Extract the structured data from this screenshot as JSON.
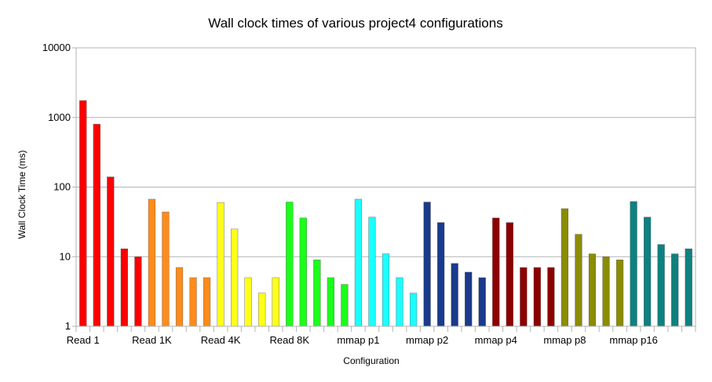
{
  "chart_data": {
    "type": "bar",
    "title": "Wall clock times of various project4 configurations",
    "xlabel": "Configuration",
    "ylabel": "Wall Clock Time (ms)",
    "y_scale": "log",
    "ylim": [
      1,
      10000
    ],
    "y_ticks": [
      "1",
      "10",
      "100",
      "1000",
      "10000"
    ],
    "grid": true,
    "groups": [
      {
        "label": "Read 1",
        "color": "#ff0000",
        "values": [
          1750,
          800,
          140,
          13,
          10
        ]
      },
      {
        "label": "Read 1K",
        "color": "#ff8c1a",
        "values": [
          67,
          44,
          7,
          5,
          5
        ]
      },
      {
        "label": "Read 4K",
        "color": "#ffff1a",
        "values": [
          60,
          25,
          5,
          3,
          5
        ]
      },
      {
        "label": "Read 8K",
        "color": "#1aff1a",
        "values": [
          61,
          36,
          9,
          5,
          4
        ]
      },
      {
        "label": "mmap p1",
        "color": "#1affff",
        "values": [
          67,
          37,
          11,
          5,
          3
        ]
      },
      {
        "label": "mmap p2",
        "color": "#1a3a8c",
        "values": [
          61,
          31,
          8,
          6,
          5
        ]
      },
      {
        "label": "mmap p4",
        "color": "#8c0000",
        "values": [
          36,
          31,
          7,
          7,
          7
        ]
      },
      {
        "label": "mmap p8",
        "color": "#8c8c00",
        "values": [
          49,
          21,
          11,
          10,
          9
        ]
      },
      {
        "label": "mmap p16",
        "color": "#0f8080",
        "values": [
          62,
          37,
          15,
          11,
          13
        ]
      }
    ]
  }
}
